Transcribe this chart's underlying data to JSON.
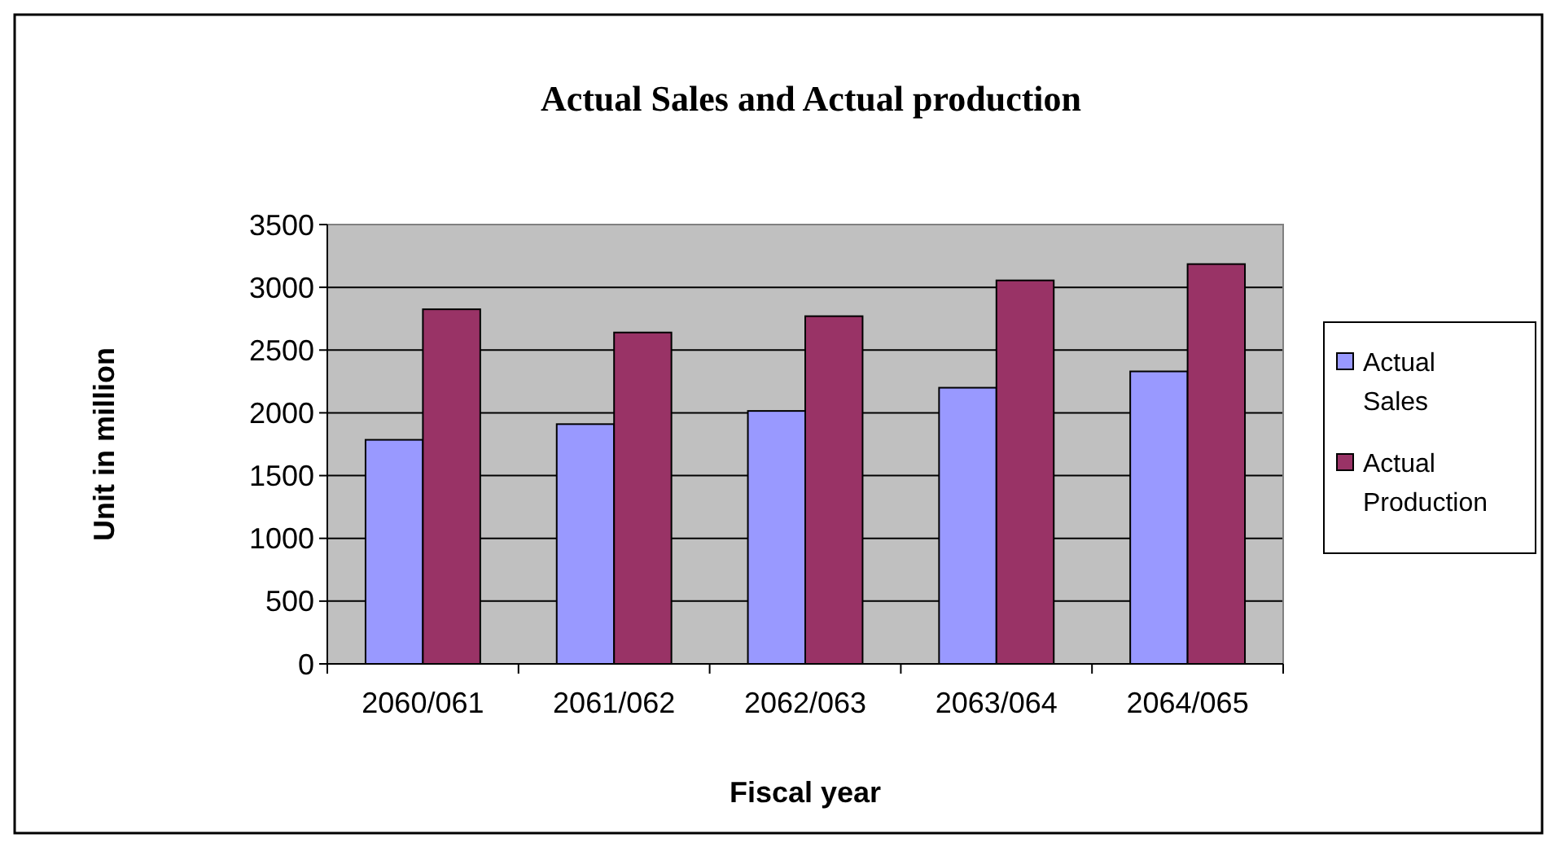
{
  "chart_data": {
    "type": "bar",
    "title": "Actual Sales and Actual production",
    "xlabel": "Fiscal year",
    "ylabel": "Unit in million",
    "categories": [
      "2060/061",
      "2061/062",
      "2062/063",
      "2063/064",
      "2064/065"
    ],
    "series": [
      {
        "name": "Actual Sales",
        "color": "#9999ff",
        "values": [
          1785,
          1910,
          2015,
          2200,
          2330
        ]
      },
      {
        "name": "Actual Production",
        "color": "#993366",
        "values": [
          2825,
          2640,
          2770,
          3055,
          3185
        ]
      }
    ],
    "ylim": [
      0,
      3500
    ],
    "yticks": [
      0,
      500,
      1000,
      1500,
      2000,
      2500,
      3000,
      3500
    ],
    "grid": "y",
    "legend": "right"
  }
}
